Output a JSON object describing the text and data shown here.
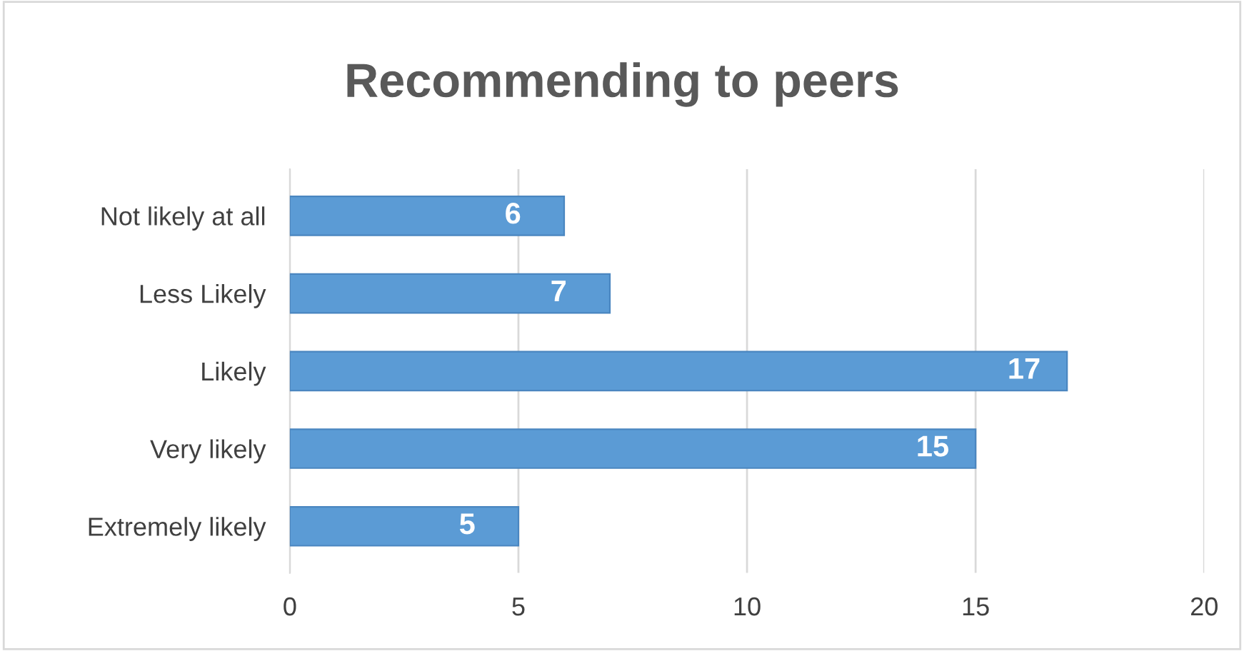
{
  "chart_data": {
    "type": "bar",
    "orientation": "horizontal",
    "title": "Recommending to peers",
    "categories": [
      "Not likely at all",
      "Less Likely",
      "Likely",
      "Very likely",
      "Extremely likely"
    ],
    "values": [
      6,
      7,
      17,
      15,
      5
    ],
    "color": "#5b9bd5",
    "xlim": [
      0,
      20
    ],
    "xticks": [
      0,
      5,
      10,
      15,
      20
    ],
    "grid": "x",
    "data_labels": true
  }
}
